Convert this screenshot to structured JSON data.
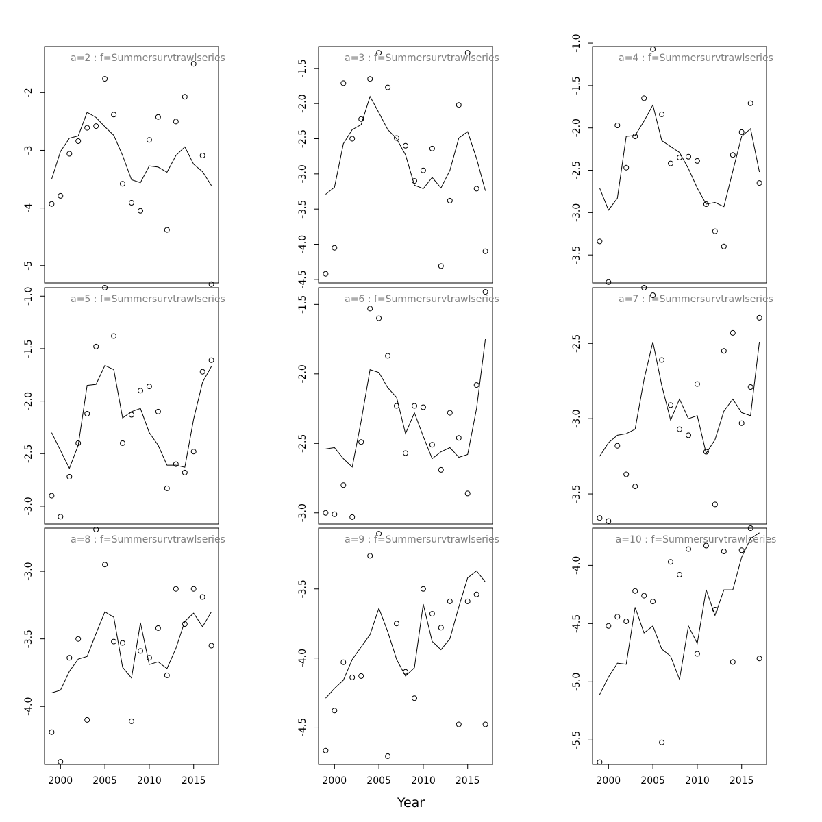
{
  "figure": {
    "xlabel": "Year",
    "ylabel": ""
  },
  "chart_data": [
    {
      "type": "scatter",
      "title": "a=2 : f=Summersurvtrawlseries",
      "x_ticks": [
        2000,
        2005,
        2010,
        2015
      ],
      "y_ticks": [
        -5,
        -4,
        -3,
        -2
      ],
      "y_tick_labels": [
        "-5",
        "-4",
        "-3",
        "-2"
      ],
      "xlim": [
        1998.2,
        2017.8
      ],
      "ylim": [
        -5.3,
        -1.2
      ],
      "series": [
        {
          "kind": "points",
          "x": [
            1999,
            2000,
            2001,
            2002,
            2003,
            2004,
            2005,
            2006,
            2007,
            2008,
            2009,
            2010,
            2011,
            2012,
            2013,
            2014,
            2015,
            2016,
            2017
          ],
          "y": [
            -3.93,
            -3.79,
            -3.06,
            -2.84,
            -2.61,
            -2.58,
            -1.76,
            -2.38,
            -3.58,
            -3.91,
            -4.05,
            -2.82,
            -2.42,
            -4.38,
            -2.5,
            -2.07,
            -1.5,
            -3.09,
            -5.32
          ]
        },
        {
          "kind": "line",
          "x": [
            1999,
            2000,
            2001,
            2002,
            2003,
            2004,
            2005,
            2006,
            2007,
            2008,
            2009,
            2010,
            2011,
            2012,
            2013,
            2014,
            2015,
            2016,
            2017
          ],
          "y": [
            -3.5,
            -3.02,
            -2.79,
            -2.75,
            -2.34,
            -2.43,
            -2.59,
            -2.74,
            -3.09,
            -3.51,
            -3.56,
            -3.27,
            -3.29,
            -3.38,
            -3.09,
            -2.94,
            -3.24,
            -3.37,
            -3.61
          ]
        }
      ]
    },
    {
      "type": "scatter",
      "title": "a=5 : f=Summersurvtrawlseries",
      "x_ticks": [
        2000,
        2005,
        2010,
        2015
      ],
      "y_ticks": [
        -3.0,
        -2.5,
        -2.0,
        -1.5,
        -1.0
      ],
      "y_tick_labels": [
        "-3.0",
        "-2.5",
        "-2.0",
        "-1.5",
        "-1.0"
      ],
      "xlim": [
        1998.2,
        2017.8
      ],
      "ylim": [
        -3.17,
        -0.92
      ],
      "series": [
        {
          "kind": "points",
          "x": [
            1999,
            2000,
            2001,
            2002,
            2003,
            2004,
            2005,
            2006,
            2007,
            2008,
            2009,
            2010,
            2011,
            2012,
            2013,
            2014,
            2015,
            2016,
            2017
          ],
          "y": [
            -2.9,
            -3.1,
            -2.72,
            -2.4,
            -2.12,
            -1.48,
            -0.92,
            -1.38,
            -2.4,
            -2.13,
            -1.9,
            -1.86,
            -2.1,
            -2.83,
            -2.6,
            -2.68,
            -2.48,
            -1.72,
            -1.61
          ]
        },
        {
          "kind": "line",
          "x": [
            1999,
            2000,
            2001,
            2002,
            2003,
            2004,
            2005,
            2006,
            2007,
            2008,
            2009,
            2010,
            2011,
            2012,
            2013,
            2014,
            2015,
            2016,
            2017
          ],
          "y": [
            -2.3,
            -2.47,
            -2.64,
            -2.42,
            -1.85,
            -1.84,
            -1.66,
            -1.7,
            -2.16,
            -2.1,
            -2.07,
            -2.3,
            -2.42,
            -2.61,
            -2.61,
            -2.63,
            -2.17,
            -1.82,
            -1.67
          ]
        }
      ]
    },
    {
      "type": "scatter",
      "title": "a=8 : f=Summersurvtrawlseries",
      "x_ticks": [
        2000,
        2005,
        2010,
        2015
      ],
      "y_ticks": [
        -4.0,
        -3.5,
        -3.0
      ],
      "y_tick_labels": [
        "-4.0",
        "-3.5",
        "-3.0"
      ],
      "xlim": [
        1998.2,
        2017.8
      ],
      "ylim": [
        -4.43,
        -2.68
      ],
      "series": [
        {
          "kind": "points",
          "x": [
            1999,
            2000,
            2001,
            2002,
            2003,
            2004,
            2005,
            2006,
            2007,
            2008,
            2009,
            2010,
            2011,
            2012,
            2013,
            2014,
            2015,
            2016,
            2017
          ],
          "y": [
            -4.19,
            -4.41,
            -3.64,
            -3.5,
            -4.1,
            -2.69,
            -2.95,
            -3.52,
            -3.53,
            -4.11,
            -3.59,
            -3.64,
            -3.42,
            -3.77,
            -3.13,
            -3.39,
            -3.13,
            -3.19,
            -3.55
          ]
        },
        {
          "kind": "line",
          "x": [
            1999,
            2000,
            2001,
            2002,
            2003,
            2004,
            2005,
            2006,
            2007,
            2008,
            2009,
            2010,
            2011,
            2012,
            2013,
            2014,
            2015,
            2016,
            2017
          ],
          "y": [
            -3.9,
            -3.88,
            -3.74,
            -3.65,
            -3.63,
            -3.46,
            -3.3,
            -3.34,
            -3.71,
            -3.79,
            -3.38,
            -3.69,
            -3.67,
            -3.72,
            -3.57,
            -3.37,
            -3.31,
            -3.41,
            -3.3
          ]
        }
      ]
    },
    {
      "type": "scatter",
      "title": "a=3 : f=Summersurvtrawlseries",
      "x_ticks": [
        2000,
        2005,
        2010,
        2015
      ],
      "y_ticks": [
        -4.5,
        -4.0,
        -3.5,
        -3.0,
        -2.5,
        -2.0,
        -1.5
      ],
      "y_tick_labels": [
        "-4.5",
        "-4.0",
        "-3.5",
        "-3.0",
        "-2.5",
        "-2.0",
        "-1.5"
      ],
      "xlim": [
        1998.2,
        2017.8
      ],
      "ylim": [
        -4.55,
        -1.19
      ],
      "series": [
        {
          "kind": "points",
          "x": [
            1999,
            2000,
            2001,
            2002,
            2003,
            2004,
            2005,
            2006,
            2007,
            2008,
            2009,
            2010,
            2011,
            2012,
            2013,
            2014,
            2015,
            2016,
            2017
          ],
          "y": [
            -4.42,
            -4.05,
            -1.71,
            -2.5,
            -2.22,
            -1.65,
            -1.28,
            -1.77,
            -2.49,
            -2.6,
            -3.1,
            -2.95,
            -2.64,
            -4.31,
            -3.38,
            -2.02,
            -1.28,
            -3.21,
            -4.1
          ]
        },
        {
          "kind": "line",
          "x": [
            1999,
            2000,
            2001,
            2002,
            2003,
            2004,
            2005,
            2006,
            2007,
            2008,
            2009,
            2010,
            2011,
            2012,
            2013,
            2014,
            2015,
            2016,
            2017
          ],
          "y": [
            -3.29,
            -3.19,
            -2.57,
            -2.37,
            -2.3,
            -1.9,
            -2.13,
            -2.37,
            -2.5,
            -2.73,
            -3.16,
            -3.21,
            -3.05,
            -3.2,
            -2.95,
            -2.49,
            -2.4,
            -2.78,
            -3.24
          ]
        }
      ]
    },
    {
      "type": "scatter",
      "title": "a=6 : f=Summersurvtrawlseries",
      "x_ticks": [
        2000,
        2005,
        2010,
        2015
      ],
      "y_ticks": [
        -3.0,
        -2.5,
        -2.0,
        -1.5
      ],
      "y_tick_labels": [
        "-3.0",
        "-2.5",
        "-2.0",
        "-1.5"
      ],
      "xlim": [
        1998.2,
        2017.8
      ],
      "ylim": [
        -3.08,
        -1.38
      ],
      "series": [
        {
          "kind": "points",
          "x": [
            1999,
            2000,
            2001,
            2002,
            2003,
            2004,
            2005,
            2006,
            2007,
            2008,
            2009,
            2010,
            2011,
            2012,
            2013,
            2014,
            2015,
            2016,
            2017
          ],
          "y": [
            -3.0,
            -3.01,
            -2.8,
            -3.03,
            -2.49,
            -1.53,
            -1.6,
            -1.87,
            -2.23,
            -2.57,
            -2.23,
            -2.24,
            -2.51,
            -2.69,
            -2.28,
            -2.46,
            -2.86,
            -2.08,
            -1.41
          ]
        },
        {
          "kind": "line",
          "x": [
            1999,
            2000,
            2001,
            2002,
            2003,
            2004,
            2005,
            2006,
            2007,
            2008,
            2009,
            2010,
            2011,
            2012,
            2013,
            2014,
            2015,
            2016,
            2017
          ],
          "y": [
            -2.54,
            -2.53,
            -2.61,
            -2.67,
            -2.34,
            -1.97,
            -1.99,
            -2.1,
            -2.17,
            -2.43,
            -2.28,
            -2.45,
            -2.61,
            -2.56,
            -2.53,
            -2.6,
            -2.58,
            -2.25,
            -1.75
          ]
        }
      ]
    },
    {
      "type": "scatter",
      "title": "a=9 : f=Summersurvtrawlseries",
      "x_ticks": [
        2000,
        2005,
        2010,
        2015
      ],
      "y_ticks": [
        -4.5,
        -4.0,
        -3.5
      ],
      "y_tick_labels": [
        "-4.5",
        "-4.0",
        "-3.5"
      ],
      "xlim": [
        1998.2,
        2017.8
      ],
      "ylim": [
        -4.77,
        -3.06
      ],
      "series": [
        {
          "kind": "points",
          "x": [
            1999,
            2000,
            2001,
            2002,
            2003,
            2004,
            2005,
            2006,
            2007,
            2008,
            2009,
            2010,
            2011,
            2012,
            2013,
            2014,
            2015,
            2016,
            2017
          ],
          "y": [
            -4.67,
            -4.38,
            -4.03,
            -4.14,
            -4.13,
            -3.26,
            -3.1,
            -4.71,
            -3.75,
            -4.1,
            -4.29,
            -3.5,
            -3.68,
            -3.78,
            -3.59,
            -4.48,
            -3.59,
            -3.54,
            -4.48
          ]
        },
        {
          "kind": "line",
          "x": [
            1999,
            2000,
            2001,
            2002,
            2003,
            2004,
            2005,
            2006,
            2007,
            2008,
            2009,
            2010,
            2011,
            2012,
            2013,
            2014,
            2015,
            2016,
            2017
          ],
          "y": [
            -4.29,
            -4.22,
            -4.16,
            -4.01,
            -3.92,
            -3.83,
            -3.64,
            -3.81,
            -4.01,
            -4.13,
            -4.07,
            -3.61,
            -3.88,
            -3.94,
            -3.86,
            -3.63,
            -3.42,
            -3.37,
            -3.45
          ]
        }
      ]
    },
    {
      "type": "scatter",
      "title": "a=4 : f=Summersurvtrawlseries",
      "x_ticks": [
        2000,
        2005,
        2010,
        2015
      ],
      "y_ticks": [
        -3.5,
        -3.0,
        -2.5,
        -2.0,
        -1.5,
        -1.0
      ],
      "y_tick_labels": [
        "-3.5",
        "-3.0",
        "-2.5",
        "-2.0",
        "-1.5",
        "-1.0"
      ],
      "xlim": [
        1998.2,
        2017.8
      ],
      "ylim": [
        -3.83,
        -1.04
      ],
      "series": [
        {
          "kind": "points",
          "x": [
            1999,
            2000,
            2001,
            2002,
            2003,
            2004,
            2005,
            2006,
            2007,
            2008,
            2009,
            2010,
            2011,
            2012,
            2013,
            2014,
            2015,
            2016,
            2017
          ],
          "y": [
            -3.34,
            -3.82,
            -1.97,
            -2.47,
            -2.1,
            -1.65,
            -1.07,
            -1.84,
            -2.42,
            -2.35,
            -2.34,
            -2.39,
            -2.9,
            -3.22,
            -3.4,
            -2.32,
            -2.05,
            -1.71,
            -2.65
          ]
        },
        {
          "kind": "line",
          "x": [
            1999,
            2000,
            2001,
            2002,
            2003,
            2004,
            2005,
            2006,
            2007,
            2008,
            2009,
            2010,
            2011,
            2012,
            2013,
            2014,
            2015,
            2016,
            2017
          ],
          "y": [
            -2.71,
            -2.97,
            -2.83,
            -2.1,
            -2.09,
            -1.92,
            -1.73,
            -2.15,
            -2.22,
            -2.29,
            -2.48,
            -2.71,
            -2.9,
            -2.88,
            -2.93,
            -2.51,
            -2.1,
            -2.01,
            -2.52
          ]
        }
      ]
    },
    {
      "type": "scatter",
      "title": "a=7 : f=Summersurvtrawlseries",
      "x_ticks": [
        2000,
        2005,
        2010,
        2015
      ],
      "y_ticks": [
        -3.5,
        -3.0,
        -2.5
      ],
      "y_tick_labels": [
        "-3.5",
        "-3.0",
        "-2.5"
      ],
      "xlim": [
        1998.2,
        2017.8
      ],
      "ylim": [
        -3.7,
        -2.13
      ],
      "series": [
        {
          "kind": "points",
          "x": [
            1999,
            2000,
            2001,
            2002,
            2003,
            2004,
            2005,
            2006,
            2007,
            2008,
            2009,
            2010,
            2011,
            2012,
            2013,
            2014,
            2015,
            2016,
            2017
          ],
          "y": [
            -3.66,
            -3.68,
            -3.18,
            -3.37,
            -3.45,
            -2.13,
            -2.18,
            -2.61,
            -2.91,
            -3.07,
            -3.11,
            -2.77,
            -3.22,
            -3.57,
            -2.55,
            -2.43,
            -3.03,
            -2.79,
            -2.33
          ]
        },
        {
          "kind": "line",
          "x": [
            1999,
            2000,
            2001,
            2002,
            2003,
            2004,
            2005,
            2006,
            2007,
            2008,
            2009,
            2010,
            2011,
            2012,
            2013,
            2014,
            2015,
            2016,
            2017
          ],
          "y": [
            -3.25,
            -3.16,
            -3.11,
            -3.1,
            -3.07,
            -2.74,
            -2.49,
            -2.78,
            -3.01,
            -2.87,
            -3.0,
            -2.98,
            -3.23,
            -3.14,
            -2.95,
            -2.87,
            -2.96,
            -2.98,
            -2.49
          ]
        }
      ]
    },
    {
      "type": "scatter",
      "title": "a=10 : f=Summersurvtrawlseries",
      "x_ticks": [
        2000,
        2005,
        2010,
        2015
      ],
      "y_ticks": [
        -5.5,
        -5.0,
        -4.5,
        -4.0
      ],
      "y_tick_labels": [
        "-5.5",
        "-5.0",
        "-4.5",
        "-4.0"
      ],
      "xlim": [
        1998.2,
        2017.8
      ],
      "ylim": [
        -5.71,
        -3.68
      ],
      "series": [
        {
          "kind": "points",
          "x": [
            1999,
            2000,
            2001,
            2002,
            2003,
            2004,
            2005,
            2006,
            2007,
            2008,
            2009,
            2010,
            2011,
            2012,
            2013,
            2014,
            2015,
            2016,
            2017
          ],
          "y": [
            -5.69,
            -4.52,
            -4.44,
            -4.48,
            -4.22,
            -4.26,
            -4.31,
            -5.52,
            -3.97,
            -4.08,
            -3.86,
            -4.76,
            -3.83,
            -4.38,
            -3.88,
            -4.83,
            -3.87,
            -3.68,
            -4.8
          ]
        },
        {
          "kind": "line",
          "x": [
            1999,
            2000,
            2001,
            2002,
            2003,
            2004,
            2005,
            2006,
            2007,
            2008,
            2009,
            2010,
            2011,
            2012,
            2013,
            2014,
            2015,
            2016,
            2017
          ],
          "y": [
            -5.11,
            -4.96,
            -4.84,
            -4.85,
            -4.36,
            -4.58,
            -4.52,
            -4.72,
            -4.78,
            -4.98,
            -4.52,
            -4.67,
            -4.21,
            -4.43,
            -4.21,
            -4.21,
            -3.93,
            -3.77,
            -3.72
          ]
        }
      ]
    }
  ]
}
